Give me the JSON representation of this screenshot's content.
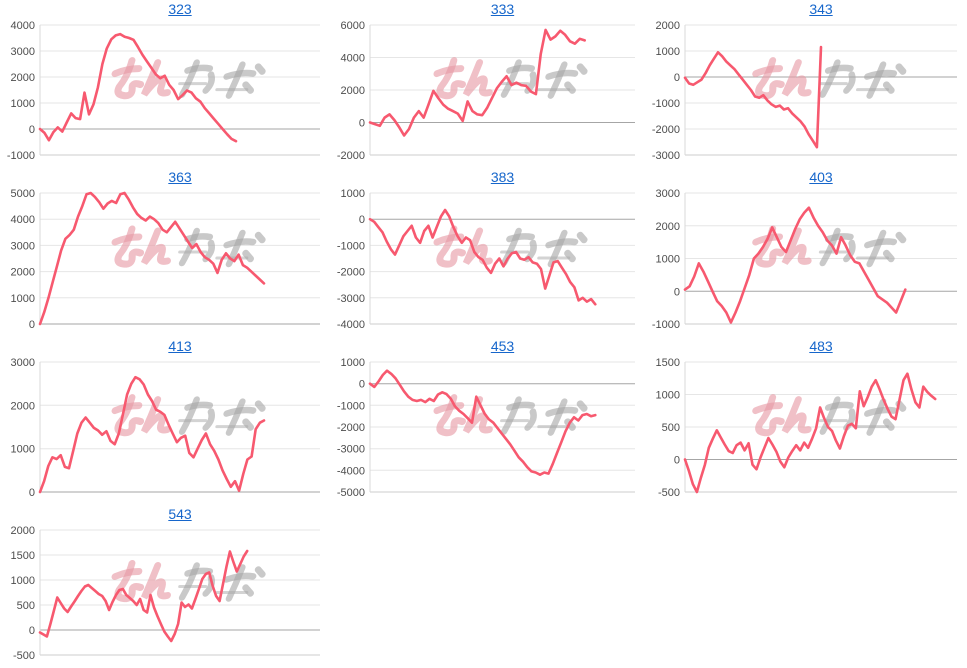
{
  "page": {
    "background": "#ffffff"
  },
  "style": {
    "line_color": "#f7596f",
    "title_color": "#1666cb",
    "tick_label_color": "#4d4d4d",
    "grid_color": "#e6e6e6",
    "zero_line_color": "#a6a6a6",
    "min_line_color": "#cccccc",
    "axis_line_color": "#d9d9d9",
    "watermark_pink": "#e79aa4",
    "watermark_gray": "#a8a8a8"
  },
  "watermark": {
    "text": "みんかぶ",
    "pink_part": "みん",
    "gray_part": "かぶ"
  },
  "chart_data": [
    {
      "type": "line",
      "title": "323",
      "ylim": [
        -1000,
        4000
      ],
      "ytick_step": 1000,
      "yticks": [
        "-1000",
        "0",
        "1000",
        "2000",
        "3000",
        "4000"
      ],
      "x_end_fraction": 0.7,
      "values": [
        0,
        -150,
        -430,
        -120,
        60,
        -100,
        250,
        600,
        420,
        380,
        1400,
        560,
        950,
        1600,
        2500,
        3100,
        3450,
        3600,
        3650,
        3550,
        3500,
        3430,
        3150,
        2850,
        2600,
        2350,
        2100,
        1950,
        2050,
        1700,
        1500,
        1150,
        1300,
        1480,
        1400,
        1180,
        1050,
        800,
        600,
        400,
        200,
        0,
        -200,
        -380,
        -470
      ]
    },
    {
      "type": "line",
      "title": "333",
      "ylim": [
        -2000,
        6000
      ],
      "ytick_step": 2000,
      "yticks": [
        "-2000",
        "0",
        "2000",
        "4000",
        "6000"
      ],
      "x_end_fraction": 0.81,
      "values": [
        0,
        -100,
        -200,
        300,
        500,
        150,
        -300,
        -800,
        -400,
        300,
        700,
        300,
        1100,
        1950,
        1500,
        1100,
        850,
        700,
        550,
        100,
        1300,
        700,
        500,
        450,
        900,
        1500,
        2100,
        2500,
        2850,
        2300,
        2450,
        2300,
        2250,
        1900,
        1750,
        4200,
        5700,
        5100,
        5300,
        5650,
        5400,
        5000,
        4850,
        5150,
        5050
      ]
    },
    {
      "type": "line",
      "title": "343",
      "ylim": [
        -3000,
        2000
      ],
      "ytick_step": 1000,
      "yticks": [
        "-3000",
        "-2000",
        "-1000",
        "0",
        "1000",
        "2000"
      ],
      "x_end_fraction": 0.5,
      "values": [
        -30,
        -250,
        -300,
        -200,
        -100,
        150,
        450,
        700,
        950,
        800,
        600,
        450,
        300,
        100,
        -100,
        -300,
        -500,
        -750,
        -800,
        -700,
        -900,
        -1050,
        -1150,
        -1100,
        -1250,
        -1200,
        -1400,
        -1550,
        -1700,
        -1900,
        -2200,
        -2450,
        -2700,
        1150
      ]
    },
    {
      "type": "line",
      "title": "363",
      "ylim": [
        0,
        5000
      ],
      "ytick_step": 1000,
      "yticks": [
        "0",
        "1000",
        "2000",
        "3000",
        "4000",
        "5000"
      ],
      "x_end_fraction": 0.8,
      "values": [
        0,
        450,
        1000,
        1600,
        2200,
        2800,
        3250,
        3400,
        3600,
        4100,
        4500,
        4950,
        5000,
        4850,
        4650,
        4400,
        4600,
        4700,
        4620,
        4950,
        5000,
        4750,
        4450,
        4200,
        4050,
        3950,
        4100,
        4000,
        3850,
        3600,
        3500,
        3700,
        3900,
        3650,
        3400,
        3150,
        2900,
        3050,
        2750,
        2550,
        2450,
        2300,
        1950,
        2450,
        2700,
        2500,
        2400,
        2650,
        2250,
        2150,
        2000,
        1850,
        1700,
        1550
      ]
    },
    {
      "type": "line",
      "title": "383",
      "ylim": [
        -4000,
        1000
      ],
      "ytick_step": 1000,
      "yticks": [
        "-4000",
        "-3000",
        "-2000",
        "-1000",
        "0",
        "1000"
      ],
      "x_end_fraction": 0.85,
      "values": [
        0,
        -100,
        -300,
        -500,
        -850,
        -1150,
        -1350,
        -1000,
        -650,
        -450,
        -250,
        -700,
        -900,
        -450,
        -250,
        -700,
        -300,
        100,
        350,
        100,
        -300,
        -650,
        -900,
        -700,
        -800,
        -1250,
        -1450,
        -1550,
        -1850,
        -2050,
        -1700,
        -1500,
        -1800,
        -1500,
        -1300,
        -1250,
        -1500,
        -1550,
        -1450,
        -1650,
        -1700,
        -1900,
        -2650,
        -2150,
        -1650,
        -1600,
        -1850,
        -2100,
        -2400,
        -2600,
        -3100,
        -3000,
        -3150,
        -3050,
        -3250
      ]
    },
    {
      "type": "line",
      "title": "403",
      "ylim": [
        -1000,
        3000
      ],
      "ytick_step": 1000,
      "yticks": [
        "-1000",
        "0",
        "1000",
        "2000",
        "3000"
      ],
      "x_end_fraction": 0.81,
      "values": [
        50,
        150,
        450,
        850,
        600,
        300,
        0,
        -300,
        -450,
        -650,
        -950,
        -650,
        -300,
        100,
        500,
        1000,
        1150,
        1350,
        1600,
        1950,
        1650,
        1350,
        1200,
        1550,
        1900,
        2200,
        2400,
        2550,
        2250,
        2000,
        1800,
        1550,
        1400,
        1150,
        1650,
        1400,
        1100,
        900,
        850,
        600,
        350,
        100,
        -150,
        -250,
        -350,
        -500,
        -650,
        -300,
        50
      ]
    },
    {
      "type": "line",
      "title": "413",
      "ylim": [
        0,
        3000
      ],
      "ytick_step": 1000,
      "yticks": [
        "0",
        "1000",
        "2000",
        "3000"
      ],
      "x_end_fraction": 0.8,
      "values": [
        0,
        250,
        600,
        800,
        760,
        850,
        580,
        550,
        950,
        1350,
        1600,
        1720,
        1600,
        1480,
        1420,
        1320,
        1400,
        1180,
        1100,
        1350,
        1800,
        2250,
        2500,
        2650,
        2600,
        2480,
        2250,
        2100,
        1900,
        1850,
        1780,
        1550,
        1350,
        1150,
        1250,
        1300,
        900,
        800,
        1000,
        1200,
        1350,
        1100,
        950,
        750,
        500,
        300,
        120,
        250,
        30,
        420,
        750,
        820,
        1450,
        1600,
        1650
      ]
    },
    {
      "type": "line",
      "title": "453",
      "ylim": [
        -5000,
        1000
      ],
      "ytick_step": 1000,
      "yticks": [
        "-5000",
        "-4000",
        "-3000",
        "-2000",
        "-1000",
        "0",
        "1000"
      ],
      "x_end_fraction": 0.85,
      "values": [
        0,
        -150,
        100,
        400,
        600,
        450,
        250,
        -50,
        -350,
        -600,
        -750,
        -800,
        -750,
        -850,
        -700,
        -800,
        -500,
        -400,
        -480,
        -700,
        -1050,
        -1250,
        -1400,
        -1600,
        -1800,
        -600,
        -1000,
        -1400,
        -1650,
        -1800,
        -2050,
        -2300,
        -2550,
        -2800,
        -3100,
        -3400,
        -3600,
        -3850,
        -4050,
        -4100,
        -4200,
        -4100,
        -4150,
        -3700,
        -3200,
        -2700,
        -2200,
        -1800,
        -1550,
        -1700,
        -1450,
        -1400,
        -1500,
        -1450
      ]
    },
    {
      "type": "line",
      "title": "483",
      "ylim": [
        -500,
        1500
      ],
      "ytick_step": 500,
      "yticks": [
        "-500",
        "0",
        "500",
        "1000",
        "1500"
      ],
      "x_end_fraction": 0.92,
      "values": [
        0,
        -180,
        -380,
        -500,
        -280,
        -80,
        180,
        320,
        450,
        340,
        230,
        130,
        100,
        220,
        260,
        140,
        250,
        -80,
        -150,
        30,
        180,
        330,
        230,
        120,
        -30,
        -120,
        30,
        130,
        220,
        140,
        260,
        180,
        320,
        480,
        800,
        640,
        500,
        440,
        290,
        170,
        360,
        520,
        550,
        480,
        1050,
        820,
        960,
        1120,
        1220,
        1080,
        920,
        780,
        660,
        620,
        920,
        1220,
        1320,
        1080,
        880,
        800,
        1120,
        1040,
        980,
        930
      ]
    },
    {
      "type": "line",
      "title": "543",
      "ylim": [
        -500,
        2000
      ],
      "ytick_step": 500,
      "yticks": [
        "-500",
        "0",
        "500",
        "1000",
        "1500",
        "2000"
      ],
      "x_end_fraction": 0.74,
      "values": [
        -50,
        -90,
        -130,
        120,
        380,
        650,
        540,
        430,
        360,
        470,
        570,
        680,
        780,
        870,
        900,
        840,
        780,
        720,
        680,
        580,
        400,
        560,
        700,
        800,
        820,
        700,
        640,
        580,
        500,
        620,
        400,
        350,
        700,
        450,
        280,
        120,
        -30,
        -130,
        -220,
        -80,
        120,
        550,
        460,
        510,
        430,
        620,
        820,
        1020,
        1120,
        1150,
        880,
        680,
        580,
        920,
        1270,
        1570,
        1360,
        1170,
        1320,
        1470,
        1580
      ]
    }
  ]
}
